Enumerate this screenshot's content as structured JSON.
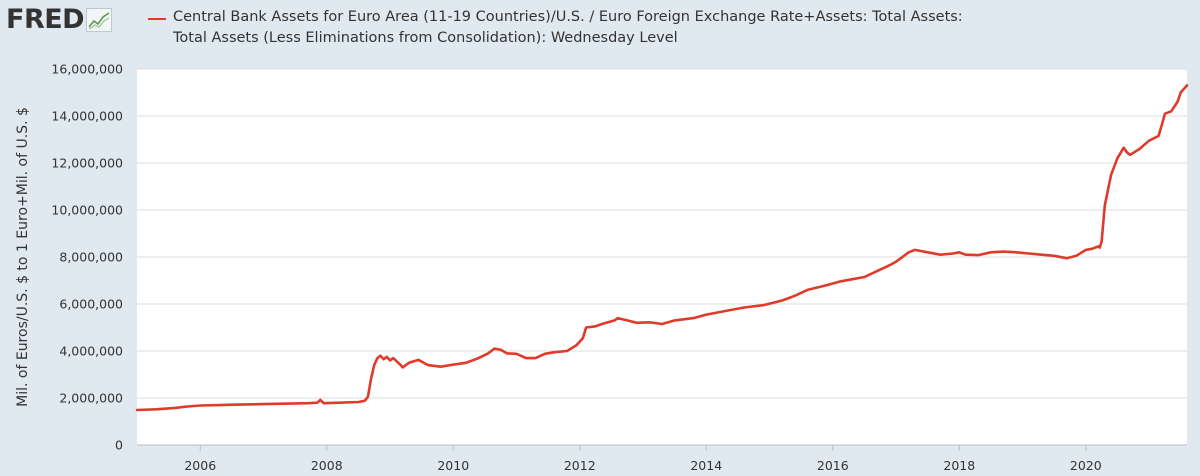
{
  "brand": {
    "logo_text": "FRED",
    "logo_icon": "trend-line-icon"
  },
  "legend": {
    "label": "Central Bank Assets for Euro Area (11-19 Countries)/U.S. / Euro Foreign Exchange Rate+Assets: Total Assets:\nTotal Assets (Less Eliminations from Consolidation): Wednesday Level",
    "color": "#e03a2a"
  },
  "chart_data": {
    "type": "line",
    "title": "",
    "xlabel": "",
    "ylabel": "Mil. of Euros/U.S. $ to 1 Euro+Mil. of U.S. $",
    "xlim": [
      2005.0,
      2021.6
    ],
    "ylim": [
      0,
      16000000
    ],
    "grid": true,
    "yticks": [
      0,
      2000000,
      4000000,
      6000000,
      8000000,
      10000000,
      12000000,
      14000000,
      16000000
    ],
    "ytick_labels": [
      "0",
      "2,000,000",
      "4,000,000",
      "6,000,000",
      "8,000,000",
      "10,000,000",
      "12,000,000",
      "14,000,000",
      "16,000,000"
    ],
    "xticks": [
      2006,
      2008,
      2010,
      2012,
      2014,
      2016,
      2018,
      2020
    ],
    "xtick_labels": [
      "2006",
      "2008",
      "2010",
      "2012",
      "2014",
      "2016",
      "2018",
      "2020"
    ],
    "series": [
      {
        "name": "Central Bank Assets for Euro Area (11-19 Countries)/U.S. / Euro Foreign Exchange Rate+Assets: Total Assets: Total Assets (Less Eliminations from Consolidation): Wednesday Level",
        "color": "#e03a2a",
        "points": [
          [
            2005.0,
            1490000
          ],
          [
            2005.3,
            1520000
          ],
          [
            2005.6,
            1580000
          ],
          [
            2005.8,
            1640000
          ],
          [
            2006.0,
            1680000
          ],
          [
            2006.3,
            1700000
          ],
          [
            2006.6,
            1720000
          ],
          [
            2007.0,
            1740000
          ],
          [
            2007.4,
            1760000
          ],
          [
            2007.7,
            1780000
          ],
          [
            2007.85,
            1800000
          ],
          [
            2007.9,
            1920000
          ],
          [
            2007.95,
            1780000
          ],
          [
            2008.2,
            1800000
          ],
          [
            2008.5,
            1830000
          ],
          [
            2008.6,
            1880000
          ],
          [
            2008.65,
            2050000
          ],
          [
            2008.7,
            2800000
          ],
          [
            2008.75,
            3400000
          ],
          [
            2008.8,
            3700000
          ],
          [
            2008.85,
            3800000
          ],
          [
            2008.9,
            3650000
          ],
          [
            2008.95,
            3750000
          ],
          [
            2009.0,
            3600000
          ],
          [
            2009.05,
            3700000
          ],
          [
            2009.15,
            3450000
          ],
          [
            2009.2,
            3300000
          ],
          [
            2009.3,
            3500000
          ],
          [
            2009.45,
            3620000
          ],
          [
            2009.6,
            3400000
          ],
          [
            2009.8,
            3330000
          ],
          [
            2010.0,
            3420000
          ],
          [
            2010.2,
            3500000
          ],
          [
            2010.4,
            3700000
          ],
          [
            2010.55,
            3900000
          ],
          [
            2010.65,
            4100000
          ],
          [
            2010.75,
            4050000
          ],
          [
            2010.85,
            3900000
          ],
          [
            2011.0,
            3880000
          ],
          [
            2011.15,
            3700000
          ],
          [
            2011.3,
            3700000
          ],
          [
            2011.45,
            3880000
          ],
          [
            2011.6,
            3950000
          ],
          [
            2011.8,
            4000000
          ],
          [
            2011.95,
            4250000
          ],
          [
            2012.05,
            4550000
          ],
          [
            2012.1,
            5000000
          ],
          [
            2012.25,
            5050000
          ],
          [
            2012.35,
            5150000
          ],
          [
            2012.55,
            5300000
          ],
          [
            2012.6,
            5400000
          ],
          [
            2012.75,
            5300000
          ],
          [
            2012.9,
            5200000
          ],
          [
            2013.1,
            5220000
          ],
          [
            2013.3,
            5150000
          ],
          [
            2013.5,
            5300000
          ],
          [
            2013.8,
            5400000
          ],
          [
            2014.0,
            5550000
          ],
          [
            2014.3,
            5700000
          ],
          [
            2014.6,
            5850000
          ],
          [
            2014.9,
            5950000
          ],
          [
            2015.2,
            6150000
          ],
          [
            2015.4,
            6350000
          ],
          [
            2015.6,
            6600000
          ],
          [
            2015.9,
            6800000
          ],
          [
            2016.1,
            6950000
          ],
          [
            2016.3,
            7050000
          ],
          [
            2016.5,
            7150000
          ],
          [
            2016.7,
            7400000
          ],
          [
            2016.9,
            7650000
          ],
          [
            2017.0,
            7800000
          ],
          [
            2017.1,
            8000000
          ],
          [
            2017.2,
            8200000
          ],
          [
            2017.3,
            8300000
          ],
          [
            2017.4,
            8250000
          ],
          [
            2017.5,
            8200000
          ],
          [
            2017.7,
            8100000
          ],
          [
            2017.9,
            8150000
          ],
          [
            2018.0,
            8200000
          ],
          [
            2018.1,
            8100000
          ],
          [
            2018.3,
            8080000
          ],
          [
            2018.5,
            8200000
          ],
          [
            2018.7,
            8230000
          ],
          [
            2018.9,
            8200000
          ],
          [
            2019.1,
            8150000
          ],
          [
            2019.3,
            8100000
          ],
          [
            2019.5,
            8050000
          ],
          [
            2019.7,
            7950000
          ],
          [
            2019.85,
            8050000
          ],
          [
            2020.0,
            8300000
          ],
          [
            2020.1,
            8350000
          ],
          [
            2020.2,
            8450000
          ],
          [
            2020.22,
            8400000
          ],
          [
            2020.25,
            8650000
          ],
          [
            2020.3,
            10200000
          ],
          [
            2020.4,
            11500000
          ],
          [
            2020.5,
            12200000
          ],
          [
            2020.6,
            12650000
          ],
          [
            2020.65,
            12450000
          ],
          [
            2020.7,
            12350000
          ],
          [
            2020.85,
            12600000
          ],
          [
            2021.0,
            12950000
          ],
          [
            2021.15,
            13150000
          ],
          [
            2021.2,
            13600000
          ],
          [
            2021.25,
            14100000
          ],
          [
            2021.35,
            14200000
          ],
          [
            2021.45,
            14600000
          ],
          [
            2021.5,
            15000000
          ],
          [
            2021.6,
            15300000
          ]
        ]
      }
    ]
  }
}
